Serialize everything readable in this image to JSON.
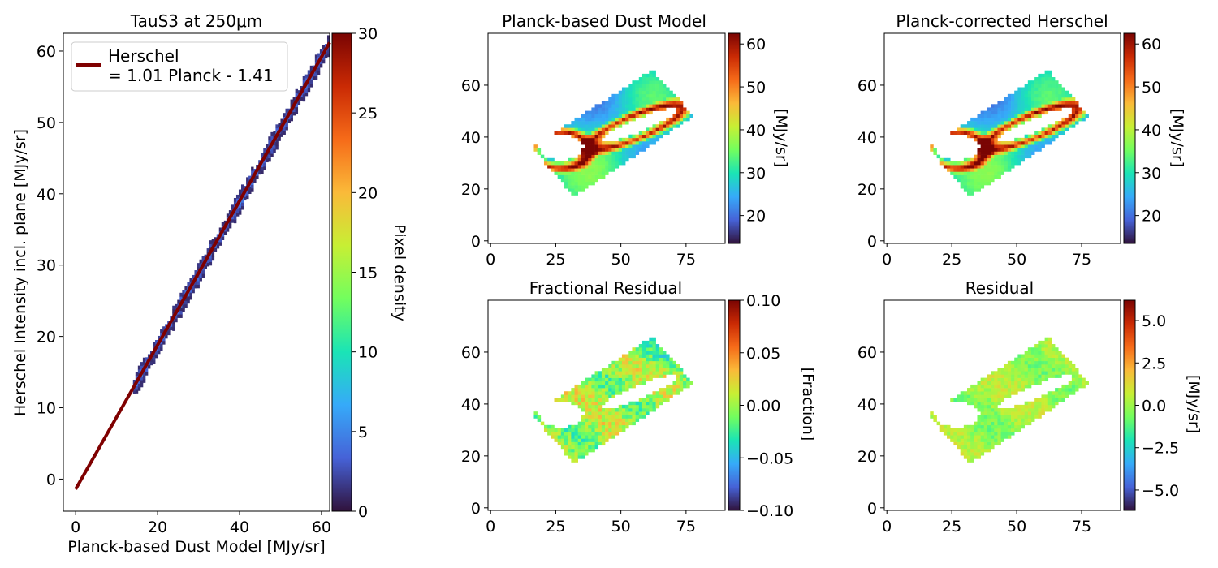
{
  "colors": {
    "fit_line": "#7f0000",
    "colormap": [
      "#30123b",
      "#4662d7",
      "#36aaf9",
      "#1ae4b6",
      "#72fe5e",
      "#c7ef34",
      "#faba39",
      "#f66b19",
      "#ca2a04",
      "#7a0403"
    ]
  },
  "chart_data": [
    {
      "type": "heatmap",
      "title": "TauS3 at 250μm",
      "xlabel": "Planck-based Dust Model [MJy/sr]",
      "ylabel": "Herschel Intensity incl. plane [MJy/sr]",
      "xlim": [
        -3,
        62
      ],
      "ylim": [
        -4.5,
        62.5
      ],
      "xticks": [
        0,
        20,
        40,
        60
      ],
      "yticks": [
        0,
        10,
        20,
        30,
        40,
        50,
        60
      ],
      "colorbar": {
        "label": "Pixel density",
        "range": [
          0,
          30
        ],
        "ticks": [
          0,
          5,
          10,
          15,
          20,
          25,
          30
        ]
      },
      "legend": {
        "placement": "top-left",
        "label_line1": "Herschel",
        "label_line2": "= 1.01 Planck - 1.41"
      },
      "fit": {
        "slope": 1.01,
        "intercept": -1.41,
        "x_range": [
          0,
          62
        ]
      },
      "density_band": {
        "x_range": [
          14,
          62
        ],
        "slope": 1.01,
        "intercept": -1.41
      }
    },
    {
      "type": "heatmap",
      "title": "Planck-based Dust Model",
      "variant": "model",
      "xlim": [
        -1,
        90
      ],
      "ylim": [
        -1,
        80
      ],
      "xticks": [
        0,
        25,
        50,
        75
      ],
      "yticks": [
        0,
        20,
        40,
        60
      ],
      "colorbar": {
        "label": "[MJy/sr]",
        "range": [
          13.5,
          62.5
        ],
        "ticks": [
          20,
          30,
          40,
          50,
          60
        ]
      }
    },
    {
      "type": "heatmap",
      "title": "Planck-corrected Herschel",
      "variant": "model",
      "xlim": [
        -1,
        90
      ],
      "ylim": [
        -1,
        80
      ],
      "xticks": [
        0,
        25,
        50,
        75
      ],
      "yticks": [
        0,
        20,
        40,
        60
      ],
      "colorbar": {
        "label": "[MJy/sr]",
        "range": [
          13.5,
          62.5
        ],
        "ticks": [
          20,
          30,
          40,
          50,
          60
        ]
      }
    },
    {
      "type": "heatmap",
      "title": "Fractional Residual",
      "variant": "fraction",
      "xlim": [
        -1,
        90
      ],
      "ylim": [
        -1,
        80
      ],
      "xticks": [
        0,
        25,
        50,
        75
      ],
      "yticks": [
        0,
        20,
        40,
        60
      ],
      "colorbar": {
        "label": "[Fraction]",
        "range": [
          -0.1,
          0.1
        ],
        "ticks": [
          0.1,
          0.05,
          0.0,
          -0.05,
          -0.1
        ],
        "tick_labels": [
          "0.10",
          "0.05",
          "0.00",
          "−0.05",
          "−0.10"
        ]
      }
    },
    {
      "type": "heatmap",
      "title": "Residual",
      "variant": "residual",
      "xlim": [
        -1,
        90
      ],
      "ylim": [
        -1,
        80
      ],
      "xticks": [
        0,
        25,
        50,
        75
      ],
      "yticks": [
        0,
        20,
        40,
        60
      ],
      "colorbar": {
        "label": "[MJy/sr]",
        "range": [
          -6.2,
          6.2
        ],
        "ticks": [
          5.0,
          2.5,
          0.0,
          -2.5,
          -5.0
        ],
        "tick_labels": [
          "5.0",
          "2.5",
          "0.0",
          "−2.5",
          "−5.0"
        ]
      }
    }
  ]
}
